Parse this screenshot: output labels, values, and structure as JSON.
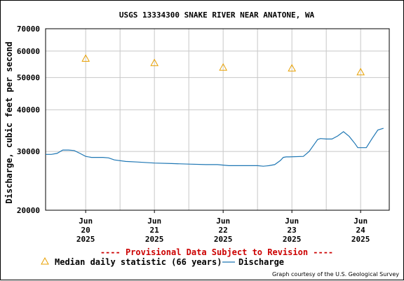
{
  "chart_data": {
    "type": "line",
    "title": "USGS 13334300 SNAKE RIVER NEAR ANATONE, WA",
    "ylabel": "Discharge, cubic feet per second",
    "xlabel": "",
    "yscale": "log",
    "ylim": [
      20000,
      70000
    ],
    "y_ticks": [
      {
        "value": 20000,
        "label": "20000"
      },
      {
        "value": 30000,
        "label": "30000"
      },
      {
        "value": 40000,
        "label": "40000"
      },
      {
        "value": 50000,
        "label": "50000"
      },
      {
        "value": 60000,
        "label": "60000"
      },
      {
        "value": 70000,
        "label": "70000"
      }
    ],
    "xlim": [
      "2025-06-19T10:00",
      "2025-06-24T10:00"
    ],
    "x_ticks": [
      {
        "value": "2025-06-20T00:00",
        "month": "Jun",
        "day": "20",
        "year": "2025"
      },
      {
        "value": "2025-06-21T00:00",
        "month": "Jun",
        "day": "21",
        "year": "2025"
      },
      {
        "value": "2025-06-22T00:00",
        "month": "Jun",
        "day": "22",
        "year": "2025"
      },
      {
        "value": "2025-06-23T00:00",
        "month": "Jun",
        "day": "23",
        "year": "2025"
      },
      {
        "value": "2025-06-24T00:00",
        "month": "Jun",
        "day": "24",
        "year": "2025"
      }
    ],
    "grid": true,
    "series": [
      {
        "name": "Median daily statistic (66 years)",
        "marker": "triangle",
        "color": "#e8a000",
        "x": [
          "2025-06-20T00:00",
          "2025-06-21T00:00",
          "2025-06-22T00:00",
          "2025-06-23T00:00",
          "2025-06-24T00:00"
        ],
        "y": [
          57000,
          55300,
          53600,
          53300,
          51900
        ]
      },
      {
        "name": "Discharge",
        "marker": "line",
        "color": "#1f77b4",
        "x": [
          "2025-06-19T10:00",
          "2025-06-19T12:00",
          "2025-06-19T14:00",
          "2025-06-19T16:00",
          "2025-06-19T18:00",
          "2025-06-19T20:00",
          "2025-06-19T22:00",
          "2025-06-20T00:00",
          "2025-06-20T02:00",
          "2025-06-20T06:00",
          "2025-06-20T08:00",
          "2025-06-20T10:00",
          "2025-06-20T14:00",
          "2025-06-20T18:00",
          "2025-06-21T00:00",
          "2025-06-21T06:00",
          "2025-06-21T12:00",
          "2025-06-21T18:00",
          "2025-06-21T22:00",
          "2025-06-22T02:00",
          "2025-06-22T06:00",
          "2025-06-22T12:00",
          "2025-06-22T14:00",
          "2025-06-22T16:00",
          "2025-06-22T18:00",
          "2025-06-22T20:00",
          "2025-06-22T21:00",
          "2025-06-22T22:00",
          "2025-06-22T23:00",
          "2025-06-23T04:00",
          "2025-06-23T06:00",
          "2025-06-23T08:00",
          "2025-06-23T09:00",
          "2025-06-23T10:00",
          "2025-06-23T12:00",
          "2025-06-23T14:00",
          "2025-06-23T16:00",
          "2025-06-23T18:00",
          "2025-06-23T20:00",
          "2025-06-23T22:00",
          "2025-06-23T23:00",
          "2025-06-24T00:00",
          "2025-06-24T01:00",
          "2025-06-24T02:00",
          "2025-06-24T04:00",
          "2025-06-24T06:00",
          "2025-06-24T08:00"
        ],
        "y": [
          29400,
          29400,
          29600,
          30300,
          30300,
          30200,
          29600,
          29000,
          28800,
          28800,
          28700,
          28300,
          28000,
          27900,
          27700,
          27600,
          27500,
          27400,
          27400,
          27200,
          27200,
          27200,
          27100,
          27200,
          27400,
          28200,
          28800,
          28900,
          28900,
          29000,
          30000,
          31700,
          32600,
          32800,
          32700,
          32700,
          33400,
          34400,
          33300,
          31700,
          30800,
          30800,
          30800,
          30800,
          32800,
          34800,
          35200
        ]
      }
    ],
    "legend_position": "bottom-left"
  },
  "notice": "---- Provisional Data Subject to Revision ----",
  "notice_color": "#cc0000",
  "credit": "Graph courtesy of the U.S. Geological Survey"
}
